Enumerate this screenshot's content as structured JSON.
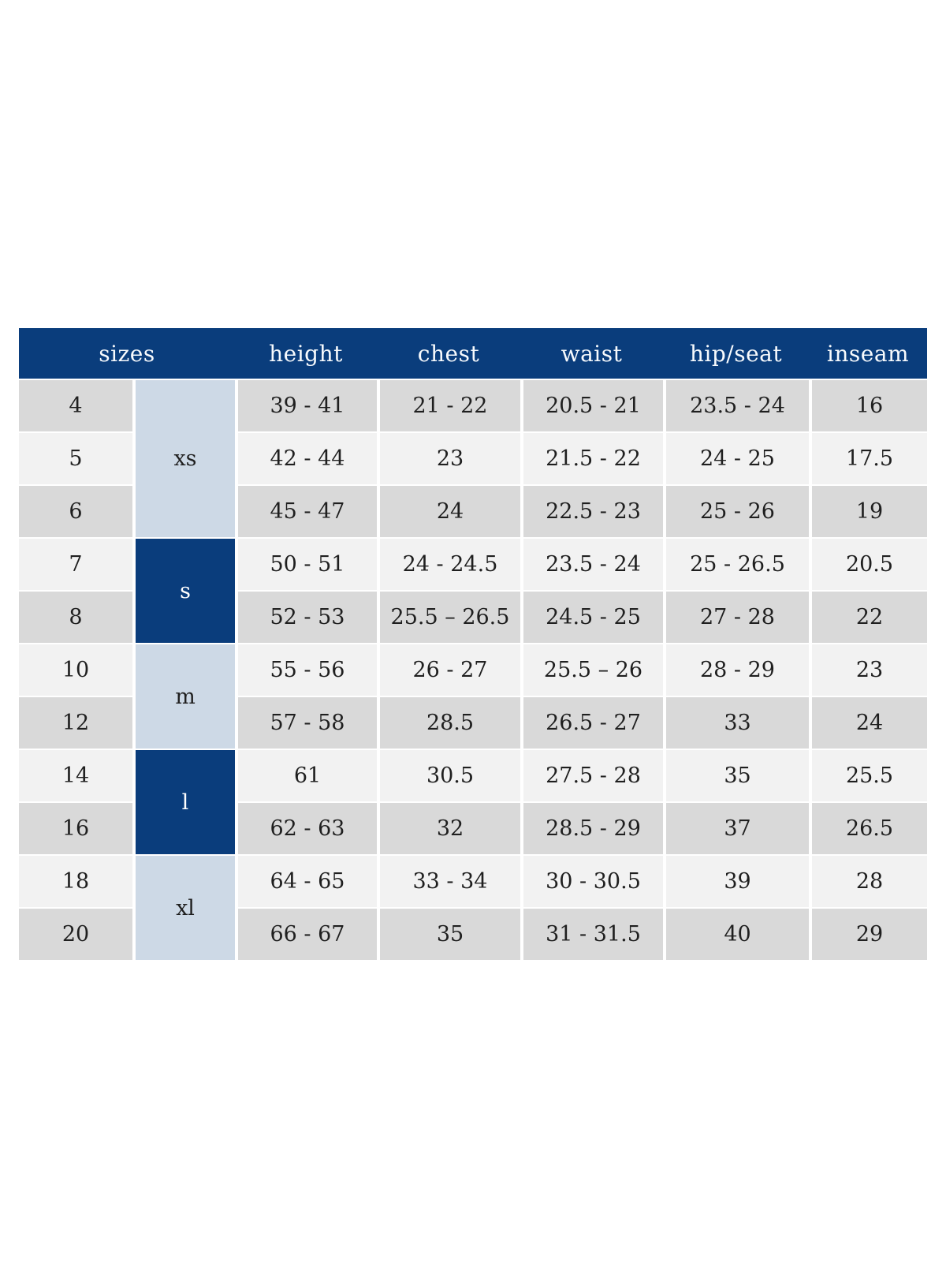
{
  "headers": {
    "sizes": "sizes",
    "height": "height",
    "chest": "chest",
    "waist": "waist",
    "hip_seat": "hip/seat",
    "inseam": "inseam"
  },
  "groups": [
    {
      "label": "xs",
      "rows_spanned": 3,
      "style": "light"
    },
    {
      "label": "s",
      "rows_spanned": 2,
      "style": "dark"
    },
    {
      "label": "m",
      "rows_spanned": 2,
      "style": "light"
    },
    {
      "label": "l",
      "rows_spanned": 2,
      "style": "dark"
    },
    {
      "label": "xl",
      "rows_spanned": 2,
      "style": "light"
    }
  ],
  "rows": [
    {
      "size": "4",
      "height": "39 - 41",
      "chest": "21 - 22",
      "waist": "20.5 - 21",
      "hip_seat": "23.5 - 24",
      "inseam": "16"
    },
    {
      "size": "5",
      "height": "42 - 44",
      "chest": "23",
      "waist": "21.5 - 22",
      "hip_seat": "24 - 25",
      "inseam": "17.5"
    },
    {
      "size": "6",
      "height": "45 - 47",
      "chest": "24",
      "waist": "22.5 - 23",
      "hip_seat": "25 - 26",
      "inseam": "19"
    },
    {
      "size": "7",
      "height": "50 - 51",
      "chest": "24 - 24.5",
      "waist": "23.5 - 24",
      "hip_seat": "25 - 26.5",
      "inseam": "20.5"
    },
    {
      "size": "8",
      "height": "52 - 53",
      "chest": "25.5 – 26.5",
      "waist": "24.5 - 25",
      "hip_seat": "27 - 28",
      "inseam": "22"
    },
    {
      "size": "10",
      "height": "55 - 56",
      "chest": "26 - 27",
      "waist": "25.5 – 26",
      "hip_seat": "28 - 29",
      "inseam": "23"
    },
    {
      "size": "12",
      "height": "57 - 58",
      "chest": "28.5",
      "waist": "26.5 - 27",
      "hip_seat": "33",
      "inseam": "24"
    },
    {
      "size": "14",
      "height": "61",
      "chest": "30.5",
      "waist": "27.5 - 28",
      "hip_seat": "35",
      "inseam": "25.5"
    },
    {
      "size": "16",
      "height": "62 - 63",
      "chest": "32",
      "waist": "28.5 - 29",
      "hip_seat": "37",
      "inseam": "26.5"
    },
    {
      "size": "18",
      "height": "64 - 65",
      "chest": "33 - 34",
      "waist": "30 - 30.5",
      "hip_seat": "39",
      "inseam": "28"
    },
    {
      "size": "20",
      "height": "66 - 67",
      "chest": "35",
      "waist": "31 - 31.5",
      "hip_seat": "40",
      "inseam": "29"
    }
  ],
  "colors": {
    "header_navy": "#0a3d7c",
    "group_light_blue": "#cdd9e6",
    "row_gray": "#d9d9d9",
    "row_light": "#f2f2f2",
    "header_text": "#f7fafd",
    "body_text": "#1f1f1f"
  }
}
